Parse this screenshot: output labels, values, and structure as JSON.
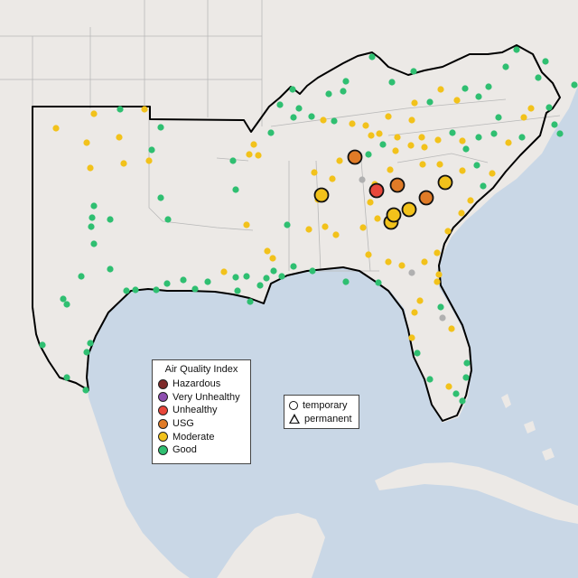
{
  "legend": {
    "title": "Air Quality Index",
    "categories": [
      {
        "label": "Hazardous",
        "color": "#7e2a2a"
      },
      {
        "label": "Very Unhealthy",
        "color": "#8e4fb0"
      },
      {
        "label": "Unhealthy",
        "color": "#e8473b"
      },
      {
        "label": "USG",
        "color": "#e07b27"
      },
      {
        "label": "Moderate",
        "color": "#f2c21b"
      },
      {
        "label": "Good",
        "color": "#2fbf71"
      }
    ]
  },
  "type_legend": {
    "temporary": "temporary",
    "permanent": "permanent"
  },
  "colors": {
    "water": "#c9d7e6",
    "land": "#ece9e6",
    "no_data": "#b0b0b0",
    "boundary": "#000000"
  },
  "large_markers": [
    {
      "category": "Unhealthy"
    },
    {
      "category": "USG"
    },
    {
      "category": "USG"
    },
    {
      "category": "USG"
    },
    {
      "category": "Moderate"
    },
    {
      "category": "Moderate"
    },
    {
      "category": "Moderate"
    },
    {
      "category": "Moderate"
    },
    {
      "category": "Moderate"
    }
  ]
}
